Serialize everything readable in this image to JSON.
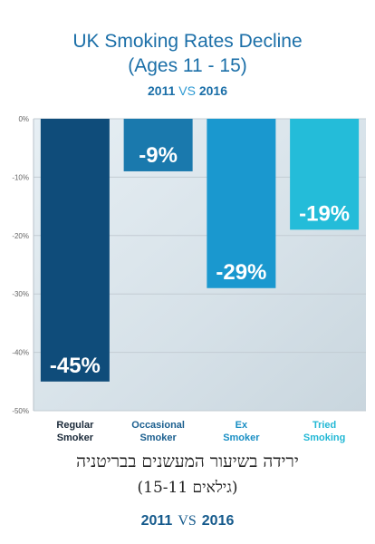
{
  "title_line1": "UK Smoking Rates Decline",
  "title_line2": "(Ages 11 - 15)",
  "year_a": "2011",
  "year_vs": "VS",
  "year_b": "2016",
  "hebrew_line1": "ירידה בשיעור המעשנים בבריטניה",
  "hebrew_line2": "(גילאים 15-11)",
  "bottom_year_a": "2011",
  "bottom_vs": "VS",
  "bottom_year_b": "2016",
  "colors": {
    "title": "#1b6fa8",
    "bar1": "#0f4c7a",
    "bar2": "#1a79ad",
    "bar3": "#1a98cf",
    "bar4": "#24bcd9"
  },
  "chart_data": {
    "type": "bar",
    "title": "UK Smoking Rates Decline",
    "categories": [
      "Regular Smoker",
      "Occasional Smoker",
      "Ex Smoker",
      "Tried Smoking"
    ],
    "category_lines": [
      [
        "Regular",
        "Smoker"
      ],
      [
        "Occasional",
        "Smoker"
      ],
      [
        "Ex",
        "Smoker"
      ],
      [
        "Tried",
        "Smoking"
      ]
    ],
    "values": [
      -45,
      -9,
      -29,
      -19
    ],
    "data_labels": [
      "-45%",
      "-9%",
      "-29%",
      "-19%"
    ],
    "ylim": [
      -50,
      0
    ],
    "yticks": [
      0,
      -10,
      -20,
      -30,
      -40,
      -50
    ],
    "ytick_labels": [
      "0%",
      "-10%",
      "-20%",
      "-30%",
      "-40%",
      "-50%"
    ],
    "grid": true
  }
}
